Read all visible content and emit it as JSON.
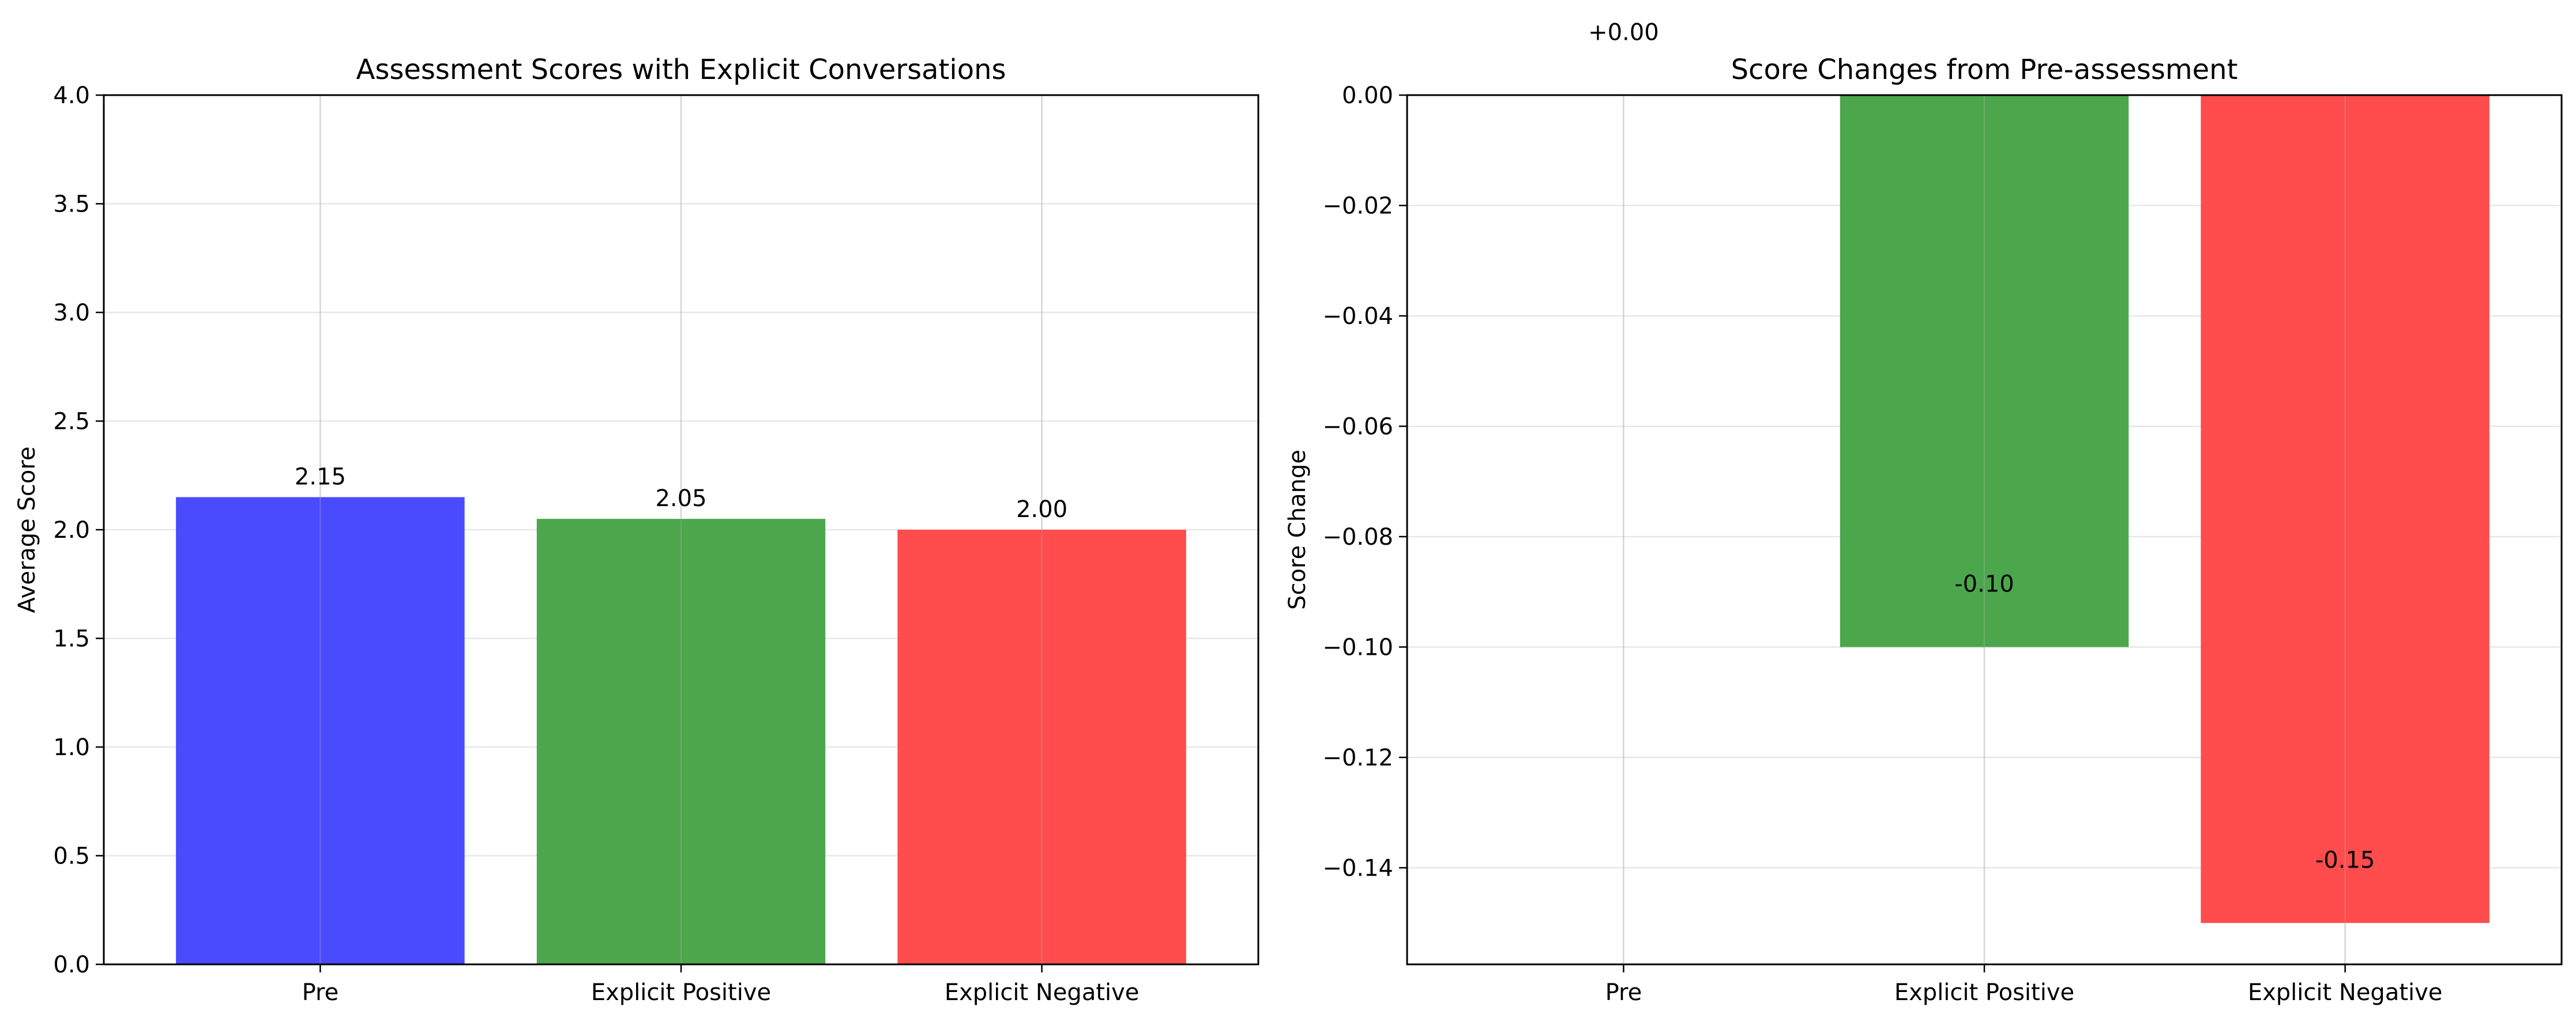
{
  "chart_data": [
    {
      "type": "bar",
      "title": "Assessment Scores with Explicit Conversations",
      "xlabel": "",
      "ylabel": "Average Score",
      "categories": [
        "Pre",
        "Explicit Positive",
        "Explicit Negative"
      ],
      "values": [
        2.15,
        2.05,
        2.0
      ],
      "value_labels": [
        "2.15",
        "2.05",
        "2.00"
      ],
      "colors": [
        "#4a4aff",
        "#4ca64c",
        "#ff4c4c"
      ],
      "ylim": [
        0,
        4
      ],
      "yticks": [
        0,
        0.5,
        1,
        1.5,
        2,
        2.5,
        3,
        3.5,
        4
      ],
      "ytick_labels": [
        "0.0",
        "0.5",
        "1.0",
        "1.5",
        "2.0",
        "2.5",
        "3.0",
        "3.5",
        "4.0"
      ],
      "grid": true
    },
    {
      "type": "bar",
      "title": "Score Changes from Pre-assessment",
      "xlabel": "",
      "ylabel": "Score Change",
      "categories": [
        "Pre",
        "Explicit Positive",
        "Explicit Negative"
      ],
      "values": [
        0.0,
        -0.1,
        -0.15
      ],
      "value_labels": [
        "+0.00",
        "-0.10",
        "-0.15"
      ],
      "colors": [
        "#4a4aff",
        "#4ca64c",
        "#ff4c4c"
      ],
      "ylim": [
        -0.1575,
        0
      ],
      "yticks": [
        0,
        -0.02,
        -0.04,
        -0.06,
        -0.08,
        -0.1,
        -0.12,
        -0.14
      ],
      "ytick_labels": [
        "0.00",
        "−0.02",
        "−0.04",
        "−0.06",
        "−0.08",
        "−0.10",
        "−0.12",
        "−0.14"
      ],
      "grid": true
    }
  ]
}
